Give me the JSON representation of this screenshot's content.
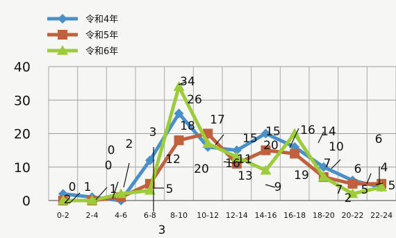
{
  "chart_data": {
    "type": "line",
    "categories": [
      "0-2",
      "2-4",
      "4-6",
      "6-8",
      "8-10",
      "10-12",
      "12-14",
      "14-16",
      "16-18",
      "18-20",
      "20-22",
      "22-24"
    ],
    "ylim": [
      0,
      40
    ],
    "yticks": [
      0,
      10,
      20,
      30,
      40
    ],
    "grid": true,
    "legend_position": "top-left",
    "series": [
      {
        "name": "令和4年",
        "color": "#4a90c8",
        "marker": "diamond",
        "values": [
          2,
          1,
          0,
          12,
          26,
          16,
          15,
          20,
          16,
          10,
          6,
          4
        ]
      },
      {
        "name": "令和5年",
        "color": "#c0603c",
        "marker": "square",
        "values": [
          0,
          0,
          1,
          5,
          18,
          20,
          11,
          15,
          14,
          7,
          5,
          5
        ]
      },
      {
        "name": "令和6年",
        "color": "#9ccc3a",
        "marker": "triangle",
        "values": [
          0,
          0,
          2,
          3,
          34,
          17,
          13,
          9,
          20,
          7,
          2,
          4
        ]
      }
    ],
    "annotations": [
      "0",
      "2",
      "1",
      "0",
      "0",
      "1",
      "2",
      "3",
      "3",
      "12",
      "5",
      "34",
      "26",
      "18",
      "17",
      "20",
      "16",
      "15",
      "15",
      "11",
      "13",
      "9",
      "16",
      "20",
      "14",
      "19",
      "10",
      "7",
      "7",
      "2",
      "6",
      "6",
      "5",
      "5",
      "4"
    ]
  }
}
